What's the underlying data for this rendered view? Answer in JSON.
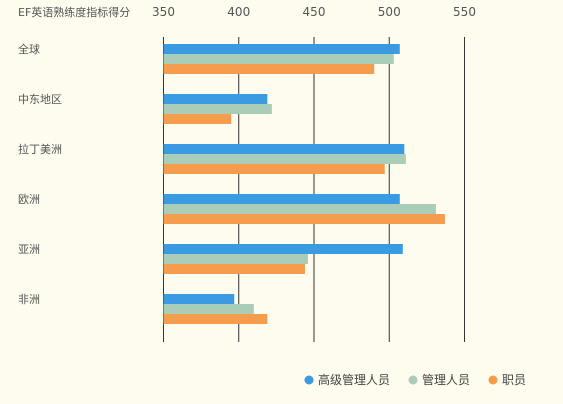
{
  "chart_data": {
    "type": "bar",
    "orientation": "horizontal",
    "ylabel": "EF英语熟练度指标得分",
    "categories": [
      "全球",
      "中东地区",
      "拉丁美洲",
      "欧洲",
      "亚洲",
      "非洲"
    ],
    "xlim": [
      350,
      550
    ],
    "xticks": [
      350,
      400,
      450,
      500,
      550
    ],
    "grid": true,
    "legend_position": "bottom-right",
    "series": [
      {
        "name": "高级管理人员",
        "color": "#3a9be3",
        "values": [
          507,
          419,
          510,
          507,
          509,
          397
        ]
      },
      {
        "name": "管理人员",
        "color": "#a9cdb8",
        "values": [
          503,
          422,
          511,
          531,
          446,
          410
        ]
      },
      {
        "name": "职员",
        "color": "#f59d4c",
        "values": [
          490,
          395,
          497,
          537,
          444,
          419
        ]
      }
    ]
  }
}
